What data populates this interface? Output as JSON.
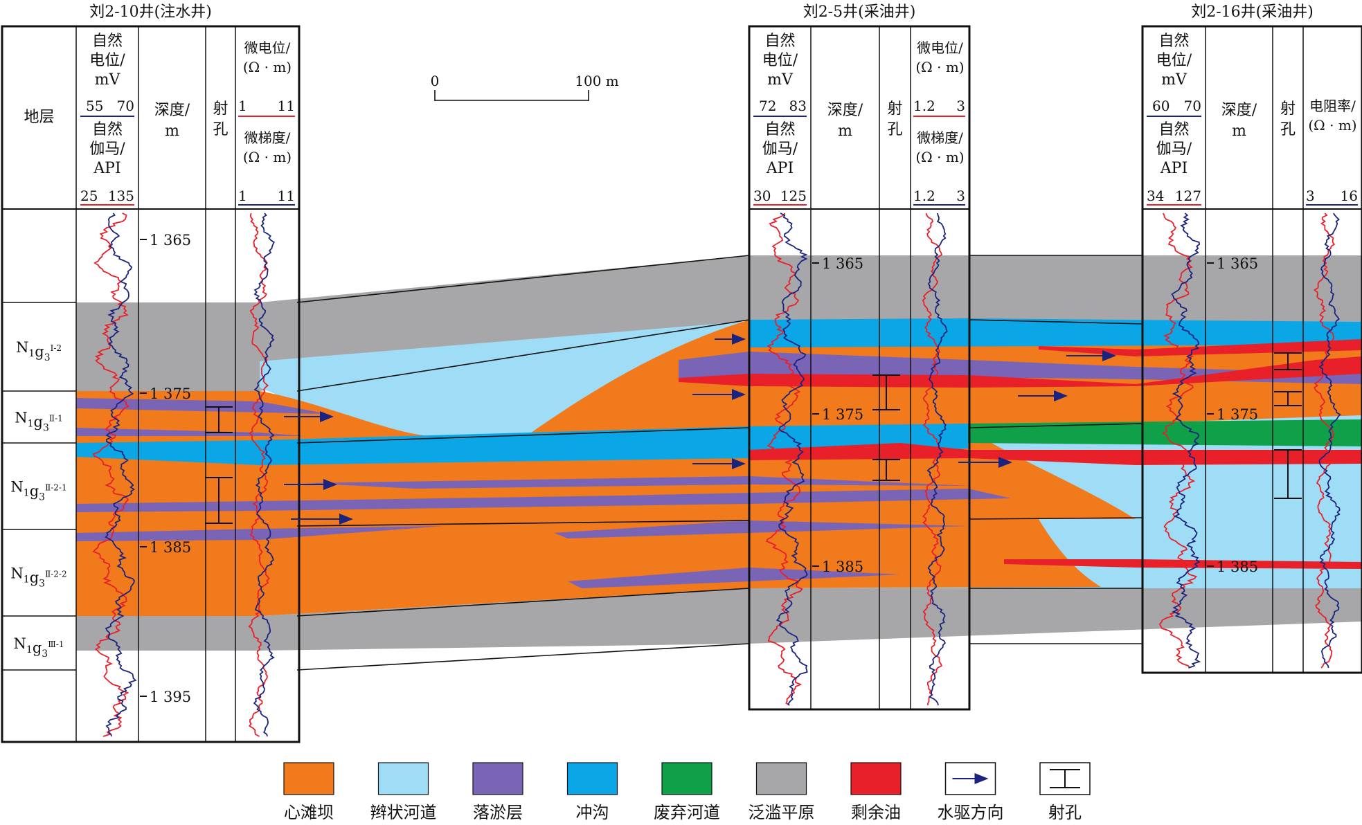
{
  "wells": [
    {
      "title": "刘2-10井(注水井)",
      "sp": {
        "label": [
          "自然",
          "电位/",
          "mV"
        ],
        "min": "55",
        "max": "70"
      },
      "gr": {
        "label": [
          "自然",
          "伽马/",
          "API"
        ],
        "min": "25",
        "max": "135"
      },
      "depth": [
        "深度/",
        "m"
      ],
      "perf": [
        "射",
        "孔"
      ],
      "res_top": {
        "label": [
          "微电位/",
          "(Ω · m)"
        ],
        "min": "1",
        "max": "11"
      },
      "res_bot": {
        "label": [
          "微梯度/",
          "(Ω · m)"
        ],
        "min": "1",
        "max": "11"
      },
      "depth_ticks": [
        "1 365",
        "1 375",
        "1 385",
        "1 395"
      ]
    },
    {
      "title": "刘2-5井(采油井)",
      "sp": {
        "label": [
          "自然",
          "电位/",
          "mV"
        ],
        "min": "72",
        "max": "83"
      },
      "gr": {
        "label": [
          "自然",
          "伽马/",
          "API"
        ],
        "min": "30",
        "max": "125"
      },
      "depth": [
        "深度/",
        "m"
      ],
      "perf": [
        "射",
        "孔"
      ],
      "res_top": {
        "label": [
          "微电位/",
          "(Ω · m)"
        ],
        "min": "1.2",
        "max": "3"
      },
      "res_bot": {
        "label": [
          "微梯度/",
          "(Ω · m)"
        ],
        "min": "1.2",
        "max": "3"
      },
      "depth_ticks": [
        "1 365",
        "1 375",
        "1 385"
      ]
    },
    {
      "title": "刘2-16井(采油井)",
      "sp": {
        "label": [
          "自然",
          "电位/",
          "mV"
        ],
        "min": "60",
        "max": "70"
      },
      "gr": {
        "label": [
          "自然",
          "伽马/",
          "API"
        ],
        "min": "34",
        "max": "127"
      },
      "depth": [
        "深度/",
        "m"
      ],
      "perf": [
        "射",
        "孔"
      ],
      "res": {
        "label": [
          "电阻率/",
          "(Ω · m)"
        ],
        "min": "3",
        "max": "16"
      },
      "depth_ticks": [
        "1 365",
        "1 375",
        "1 385"
      ]
    }
  ],
  "strata_header": "地层",
  "strata": [
    {
      "main": "N",
      "s1": "1",
      "g": "g",
      "s2": "3",
      "sup": "Ⅰ-2"
    },
    {
      "main": "N",
      "s1": "1",
      "g": "g",
      "s2": "3",
      "sup": "Ⅱ-1"
    },
    {
      "main": "N",
      "s1": "1",
      "g": "g",
      "s2": "3",
      "sup": "Ⅱ-2-1"
    },
    {
      "main": "N",
      "s1": "1",
      "g": "g",
      "s2": "3",
      "sup": "Ⅱ-2-2"
    },
    {
      "main": "N",
      "s1": "1",
      "g": "g",
      "s2": "3",
      "sup": "Ⅲ-1"
    }
  ],
  "scale_bar": {
    "start": "0",
    "end": "100 m"
  },
  "legend": [
    {
      "label": "心滩坝",
      "color": "#f07a1c"
    },
    {
      "label": "辫状河道",
      "color": "#9fdcf5"
    },
    {
      "label": "落淤层",
      "color": "#7a64b6"
    },
    {
      "label": "冲沟",
      "color": "#0aa6e6"
    },
    {
      "label": "废弃河道",
      "color": "#11a04a"
    },
    {
      "label": "泛滥平原",
      "color": "#a7a6a8"
    },
    {
      "label": "剩余油",
      "color": "#e8202a"
    },
    {
      "label": "水驱方向",
      "color": "#1a237e"
    },
    {
      "label": "射孔",
      "color": "#111111"
    }
  ],
  "colors": {
    "sp_curve": "#1a237e",
    "gr_curve": "#e8202a",
    "frame": "#111111"
  }
}
